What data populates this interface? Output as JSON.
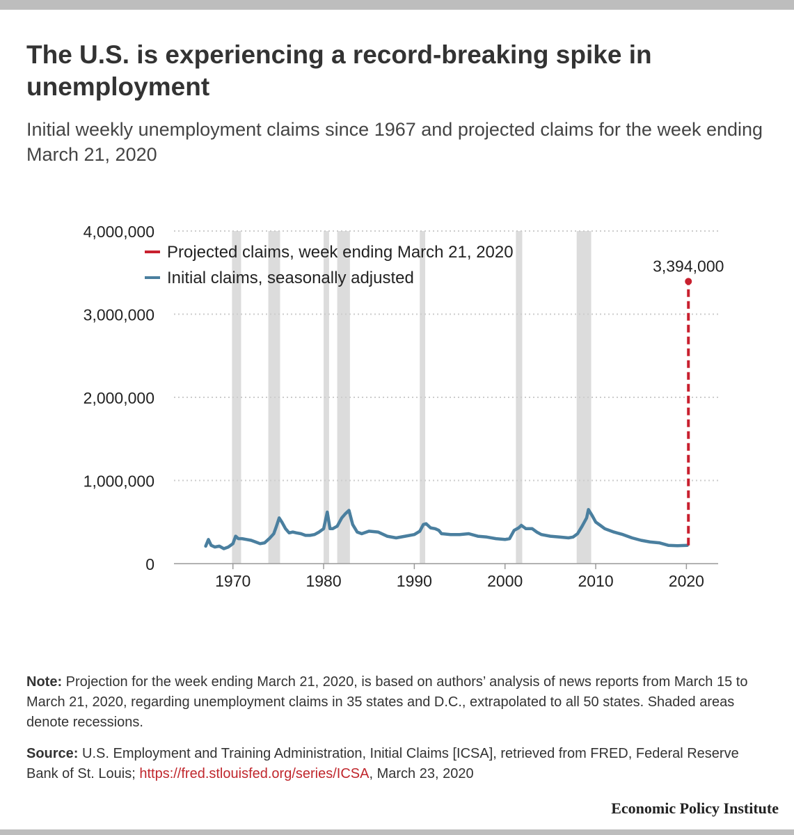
{
  "header": {
    "title": "The U.S. is experiencing a record-breaking spike in unemployment",
    "subtitle": "Initial weekly unemployment claims since 1967 and projected claims for the week ending March 21, 2020"
  },
  "chart_data": {
    "type": "line",
    "title": "The U.S. is experiencing a record-breaking spike in unemployment",
    "subtitle": "Initial weekly unemployment claims since 1967 and projected claims for the week ending March 21, 2020",
    "xlim": [
      1963.5,
      2023.5
    ],
    "ylim": [
      0,
      4000000
    ],
    "x_ticks": [
      1970,
      1980,
      1990,
      2000,
      2010,
      2020
    ],
    "x_tick_labels": [
      "1970",
      "1980",
      "1990",
      "2000",
      "2010",
      "2020"
    ],
    "y_ticks": [
      0,
      1000000,
      2000000,
      3000000,
      4000000
    ],
    "y_tick_labels": [
      "0",
      "1,000,000",
      "2,000,000",
      "3,000,000",
      "4,000,000"
    ],
    "grid": true,
    "legend_position": "top-left",
    "recessions": [
      [
        1969.9,
        1970.9
      ],
      [
        1973.9,
        1975.2
      ],
      [
        1980.0,
        1980.6
      ],
      [
        1981.5,
        1982.9
      ],
      [
        1990.6,
        1991.2
      ],
      [
        2001.2,
        2001.9
      ],
      [
        2007.9,
        2009.5
      ]
    ],
    "series": [
      {
        "name": "Projected claims, week ending March 21, 2020",
        "color": "#c8202f",
        "style": "dashed",
        "x": [
          2020.22,
          2020.22
        ],
        "y": [
          220000,
          3394000
        ]
      },
      {
        "name": "Initial claims, seasonally adjusted",
        "color": "#4a7f9f",
        "style": "solid",
        "x": [
          1967.0,
          1967.3,
          1967.6,
          1968.0,
          1968.5,
          1969.0,
          1969.5,
          1970.0,
          1970.3,
          1970.6,
          1971.0,
          1971.5,
          1972.0,
          1972.5,
          1973.0,
          1973.5,
          1974.0,
          1974.5,
          1974.8,
          1975.1,
          1975.4,
          1975.8,
          1976.2,
          1976.6,
          1977.0,
          1977.5,
          1978.0,
          1978.5,
          1979.0,
          1979.5,
          1980.0,
          1980.4,
          1980.7,
          1981.0,
          1981.5,
          1982.0,
          1982.4,
          1982.8,
          1983.2,
          1983.7,
          1984.2,
          1985.0,
          1986.0,
          1987.0,
          1988.0,
          1989.0,
          1990.0,
          1990.6,
          1991.0,
          1991.3,
          1991.8,
          1992.3,
          1992.7,
          1993.0,
          1994.0,
          1995.0,
          1996.0,
          1997.0,
          1998.0,
          1999.0,
          2000.0,
          2000.5,
          2001.0,
          2001.5,
          2001.8,
          2002.3,
          2003.0,
          2003.5,
          2004.0,
          2005.0,
          2006.0,
          2007.0,
          2007.5,
          2008.0,
          2008.5,
          2009.0,
          2009.2,
          2009.6,
          2010.0,
          2010.5,
          2011.0,
          2012.0,
          2013.0,
          2014.0,
          2015.0,
          2016.0,
          2017.0,
          2018.0,
          2019.0,
          2020.1
        ],
        "y": [
          210000,
          290000,
          220000,
          200000,
          210000,
          180000,
          200000,
          240000,
          330000,
          300000,
          300000,
          290000,
          280000,
          260000,
          240000,
          250000,
          300000,
          360000,
          450000,
          550000,
          500000,
          420000,
          370000,
          380000,
          370000,
          360000,
          340000,
          340000,
          350000,
          380000,
          420000,
          620000,
          420000,
          420000,
          450000,
          550000,
          600000,
          640000,
          470000,
          380000,
          360000,
          390000,
          380000,
          330000,
          310000,
          330000,
          350000,
          390000,
          470000,
          480000,
          430000,
          420000,
          400000,
          360000,
          350000,
          350000,
          360000,
          330000,
          320000,
          300000,
          290000,
          300000,
          400000,
          430000,
          460000,
          420000,
          420000,
          380000,
          350000,
          330000,
          320000,
          310000,
          320000,
          360000,
          450000,
          550000,
          650000,
          580000,
          500000,
          460000,
          420000,
          380000,
          350000,
          310000,
          280000,
          260000,
          250000,
          220000,
          215000,
          220000
        ]
      }
    ],
    "annotations": [
      {
        "text": "3,394,000",
        "x": 2020.22,
        "y": 3394000
      }
    ]
  },
  "footer": {
    "note_label": "Note:",
    "note_text": " Projection for the week ending March 21, 2020, is based on authors’ analysis of news reports from March 15 to March 21, 2020, regarding unemployment claims in 35 states and D.C., extrapolated to all 50 states. Shaded areas denote recessions.",
    "source_label": "Source:",
    "source_text": " U.S. Employment and Training Administration, Initial Claims [ICSA], retrieved from FRED, Federal Reserve Bank of St. Louis; ",
    "source_link": "https://fred.stlouisfed.org/series/ICSA",
    "source_tail": ", March 23, 2020",
    "brand": "Economic Policy Institute"
  },
  "colors": {
    "recession_shade": "#dcdcdc",
    "grid": "#cccccc",
    "accent_red": "#c8202f",
    "line_blue": "#4a7f9f"
  }
}
